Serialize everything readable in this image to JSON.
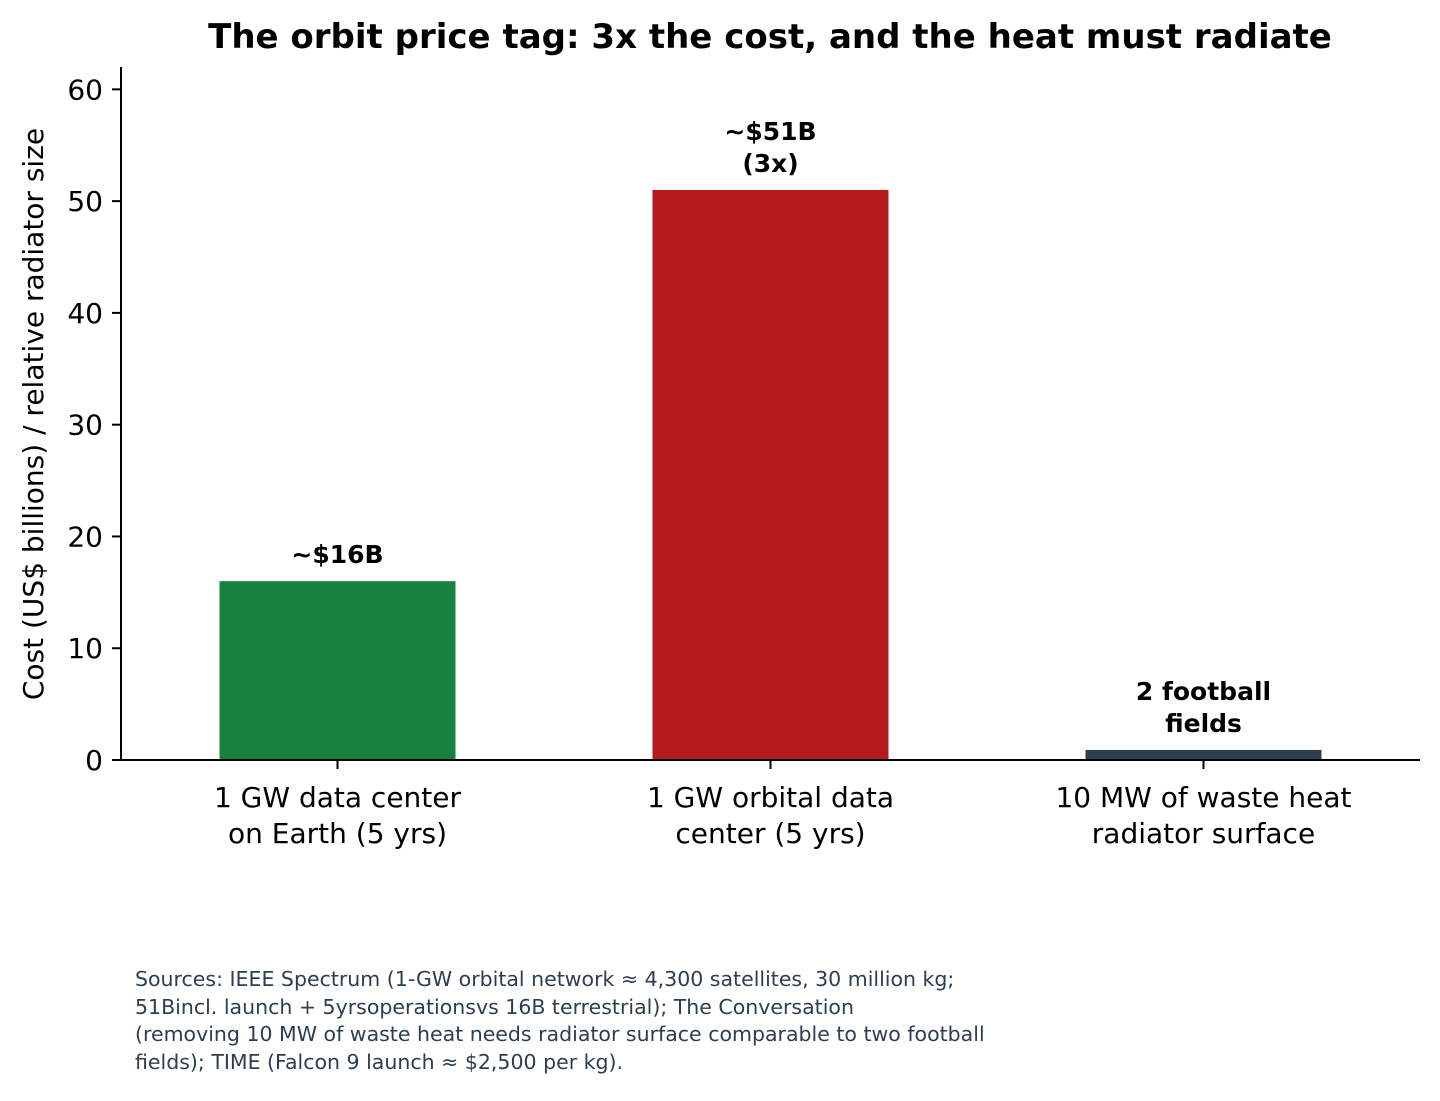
{
  "chart_data": {
    "type": "bar",
    "title": "The orbit price tag: 3x the cost, and the heat must radiate",
    "ylabel": "Cost (US$ billions) / relative radiator size",
    "xlabel": "",
    "ylim": [
      0,
      62
    ],
    "yticks": [
      0,
      10,
      20,
      30,
      40,
      50,
      60
    ],
    "categories": [
      [
        "1 GW data center",
        "on Earth (5 yrs)"
      ],
      [
        "1 GW orbital data",
        "center (5 yrs)"
      ],
      [
        "10 MW of waste heat",
        "radiator surface"
      ]
    ],
    "values": [
      16,
      51,
      0.9
    ],
    "colors": [
      "#178140",
      "#b31b1e",
      "#2c3e50"
    ],
    "data_labels": [
      [
        "~$16B"
      ],
      [
        "~$51B",
        "(3x)"
      ],
      [
        "2 football",
        "fields"
      ]
    ],
    "grid": false,
    "legend": "none"
  },
  "sources": [
    "Sources: IEEE Spectrum (1-GW orbital network ≈ 4,300 satellites, 30 million kg;",
    "51Bincl. launch + 5yrsoperationsvs 16B terrestrial); The Conversation",
    "(removing 10 MW of waste heat needs radiator surface comparable to two football",
    "fields); TIME (Falcon 9 launch ≈ $2,500 per kg)."
  ]
}
